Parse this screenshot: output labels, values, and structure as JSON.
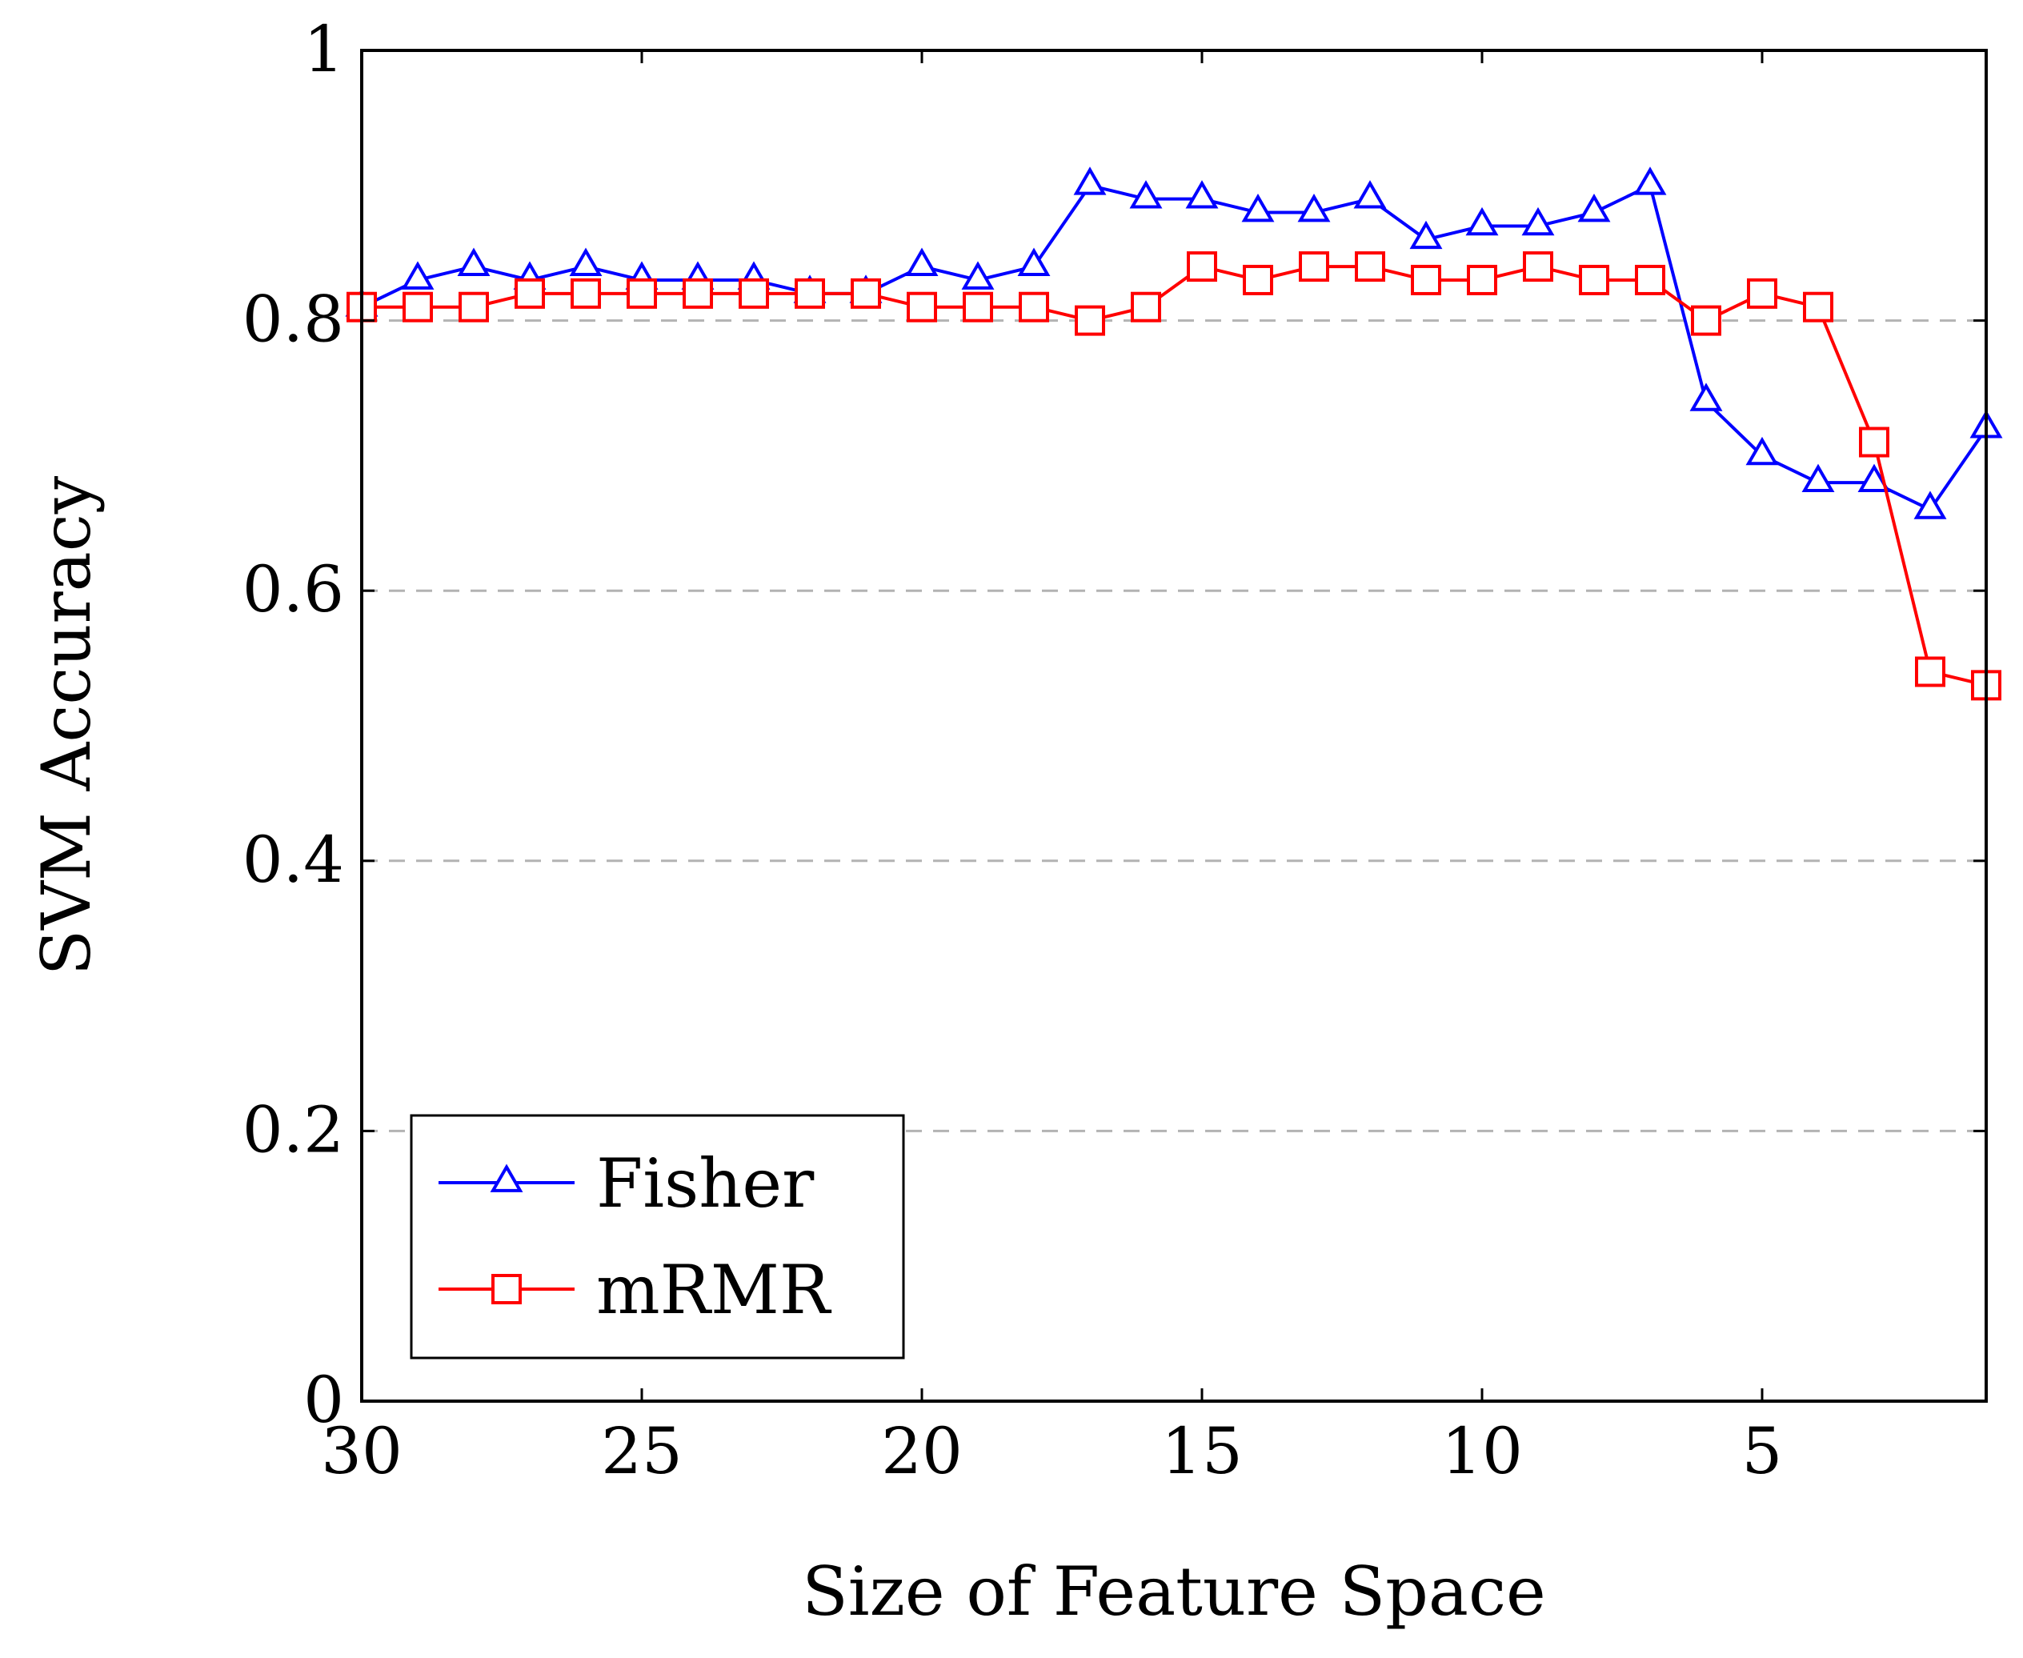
{
  "chart_data": {
    "type": "line",
    "title": "",
    "xlabel": "Size of Feature Space",
    "ylabel": "SVM Accuracy",
    "xlim": [
      30,
      1
    ],
    "x_reversed": true,
    "ylim": [
      0,
      1
    ],
    "xticks": [
      30,
      25,
      20,
      15,
      10,
      5
    ],
    "yticks": [
      0,
      0.2,
      0.4,
      0.6,
      0.8,
      1
    ],
    "ytick_labels": [
      "0",
      "0.2",
      "0.4",
      "0.6",
      "0.8",
      "1"
    ],
    "grid": "horizontal-dashed",
    "legend_position": "bottom-left",
    "x": [
      30,
      29,
      28,
      27,
      26,
      25,
      24,
      23,
      22,
      21,
      20,
      19,
      18,
      17,
      16,
      15,
      14,
      13,
      12,
      11,
      10,
      9,
      8,
      7,
      6,
      5,
      4,
      3,
      2,
      1
    ],
    "series": [
      {
        "name": "Fisher",
        "color": "#0000ff",
        "marker": "triangle",
        "values": [
          0.81,
          0.83,
          0.84,
          0.83,
          0.84,
          0.83,
          0.83,
          0.83,
          0.82,
          0.82,
          0.84,
          0.83,
          0.84,
          0.9,
          0.89,
          0.89,
          0.88,
          0.88,
          0.89,
          0.86,
          0.87,
          0.87,
          0.88,
          0.9,
          0.74,
          0.7,
          0.68,
          0.68,
          0.66,
          0.72
        ]
      },
      {
        "name": "mRMR",
        "color": "#ff0000",
        "marker": "square",
        "values": [
          0.81,
          0.81,
          0.81,
          0.82,
          0.82,
          0.82,
          0.82,
          0.82,
          0.82,
          0.82,
          0.81,
          0.81,
          0.81,
          0.8,
          0.81,
          0.84,
          0.83,
          0.84,
          0.84,
          0.83,
          0.83,
          0.84,
          0.83,
          0.83,
          0.8,
          0.82,
          0.81,
          0.71,
          0.54,
          0.53
        ]
      }
    ]
  }
}
